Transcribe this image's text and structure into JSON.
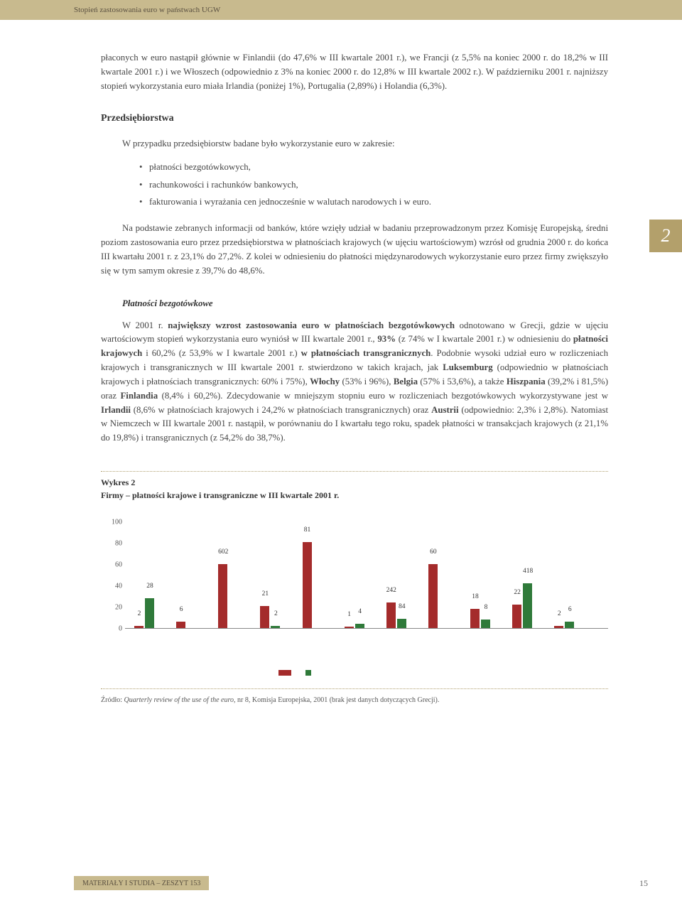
{
  "header": {
    "running_title": "Stopień zastosowania euro w państwach UGW"
  },
  "side_tab": "2",
  "para_intro": "płaconych w euro nastąpił głównie w Finlandii (do 47,6% w III kwartale 2001 r.), we Francji (z 5,5% na koniec 2000 r. do 18,2% w III kwartale 2001 r.) i we Włoszech (odpowiednio z 3% na koniec 2000 r. do 12,8% w III kwartale 2002 r.). W październiku 2001 r. najniższy stopień wykorzystania euro miała Irlandia (poniżej 1%), Portugalia (2,89%) i Holandia (6,3%).",
  "section1": {
    "heading": "Przedsiębiorstwa",
    "intro": "W przypadku przedsiębiorstw badane było wykorzystanie euro w zakresie:",
    "bullets": [
      "płatności bezgotówkowych,",
      "rachunkowości i rachunków bankowych,",
      "fakturowania i wyrażania cen jednocześnie w walutach narodowych i w euro."
    ],
    "para2": "Na podstawie zebranych informacji od banków, które wzięły udział w badaniu przeprowadzonym przez Komisję Europejską, średni poziom zastosowania euro przez przedsiębiorstwa w płatnościach krajowych (w ujęciu wartościowym) wzrósł od grudnia 2000 r. do końca III kwartału 2001 r. z 23,1% do 27,2%. Z kolei w odniesieniu do płatności międzynarodowych wykorzystanie euro przez firmy zwiększyło się w tym samym okresie z 39,7% do 48,6%.",
    "sub_head": "Płatności bezgotówkowe",
    "para3_parts": {
      "a": "W 2001 r. ",
      "b_bold": "największy wzrost zastosowania euro w płatnościach bezgotówkowych",
      "c": " odnotowano w Grecji, gdzie w ujęciu wartościowym stopień wykorzystania euro wyniósł w III kwartale 2001 r., ",
      "d_bold": "93%",
      "e": " (z 74% w I kwartale 2001 r.) w odniesieniu do ",
      "f_bold": "płatności krajowych",
      "g": " i 60,2% (z 53,9% w I kwartale 2001 r.) ",
      "h_bold": "w płatnościach transgranicznych",
      "i": ". Podobnie wysoki udział euro w rozliczeniach krajowych i transgranicznych w III kwartale 2001 r. stwierdzono w takich krajach, jak ",
      "j_bold": "Luksemburg",
      "k": " (odpowiednio w płatnościach krajowych i płatnościach transgranicznych: 60% i 75%), ",
      "l_bold": "Włochy",
      "m": " (53% i 96%), ",
      "n_bold": "Belgia",
      "o": " (57% i 53,6%), a także ",
      "p_bold": "Hiszpania",
      "q": " (39,2% i 81,5%) oraz ",
      "r_bold": "Finlandia",
      "s": " (8,4% i 60,2%). Zdecydowanie w mniejszym stopniu euro w rozliczeniach bezgotówkowych wykorzystywane jest w ",
      "t_bold": "Irlandii",
      "u": " (8,6% w płatnościach krajowych i 24,2% w płatnościach transgranicznych) oraz ",
      "v_bold": "Austrii",
      "w": " (odpowiednio: 2,3% i 2,8%). Natomiast w Niemczech w III kwartale 2001 r. nastąpił, w porównaniu do I kwartału tego roku, spadek płatności w transakcjach krajowych (z 21,1% do 19,8%) i transgranicznych (z 54,2% do 38,7%)."
    }
  },
  "chart": {
    "caption": "Wykres 2",
    "subtitle": "Firmy – płatności krajowe i transgraniczne w III kwartale 2001 r.",
    "ylim": [
      0,
      100
    ],
    "yticks": [
      0,
      20,
      40,
      60,
      80,
      100
    ],
    "color_a": "#a42b2b",
    "color_b": "#2f7a3a",
    "groups": [
      {
        "a": 2,
        "b": 28,
        "la": "2",
        "lb": "28"
      },
      {
        "a": 6,
        "b": null,
        "la": "6",
        "lb": ""
      },
      {
        "a": 60.2,
        "b": null,
        "la": "602",
        "lb": ""
      },
      {
        "a": 21,
        "b": 2,
        "la": "21",
        "lb": "2"
      },
      {
        "a": 81,
        "b": null,
        "la": "81",
        "lb": ""
      },
      {
        "a": 1,
        "b": 4,
        "la": "1",
        "lb": "4"
      },
      {
        "a": 24.2,
        "b": 8.4,
        "la": "242",
        "lb": "84"
      },
      {
        "a": 60,
        "b": null,
        "la": "60",
        "lb": ""
      },
      {
        "a": 18,
        "b": 8,
        "la": "18",
        "lb": "8"
      },
      {
        "a": 22,
        "b": 41.8,
        "la": "22",
        "lb": "418"
      },
      {
        "a": 2,
        "b": 6,
        "la": "2",
        "lb": "6"
      }
    ],
    "source_prefix": "Źródło: ",
    "source_italic": "Quarterly review of the use of the euro",
    "source_suffix": ", nr 8, Komisja Europejska, 2001 (brak jest danych dotyczących Grecji)."
  },
  "footer": {
    "series": "MATERIAŁY I STUDIA – ZESZYT 153",
    "page": "15"
  }
}
